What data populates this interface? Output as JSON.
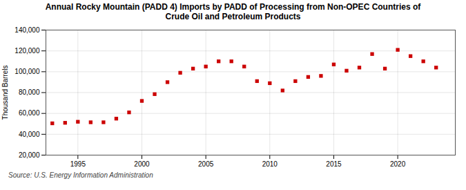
{
  "chart_data": {
    "type": "scatter",
    "title": "Annual Rocky Mountain (PADD 4) Imports by PADD of Processing from Non-OPEC Countries of\nCrude Oil and Petroleum Products",
    "ylabel": "Thousand Barrels",
    "source": "Source: U.S. Energy Information Administration",
    "x": [
      1993,
      1994,
      1995,
      1996,
      1997,
      1998,
      1999,
      2000,
      2001,
      2002,
      2003,
      2004,
      2005,
      2006,
      2007,
      2008,
      2009,
      2010,
      2011,
      2012,
      2013,
      2014,
      2015,
      2016,
      2017,
      2018,
      2019,
      2020,
      2021,
      2022,
      2023
    ],
    "values": [
      50500,
      51000,
      52000,
      51500,
      51500,
      55000,
      61000,
      72000,
      78500,
      90000,
      99000,
      103000,
      105000,
      110000,
      110000,
      105000,
      91000,
      89000,
      82000,
      91000,
      95000,
      96000,
      107000,
      101000,
      104000,
      117000,
      103000,
      121000,
      115000,
      110000,
      104000
    ],
    "color": "#cc0000",
    "marker": "square",
    "xlim": [
      1992.5,
      2024.5
    ],
    "xticks": [
      1995,
      2000,
      2005,
      2010,
      2015,
      2020
    ],
    "ylim": [
      20000,
      140000
    ],
    "yticks": [
      {
        "value": 20000,
        "label": "20,000"
      },
      {
        "value": 40000,
        "label": "40,000"
      },
      {
        "value": 60000,
        "label": "60,000"
      },
      {
        "value": 80000,
        "label": "80,000"
      },
      {
        "value": 100000,
        "label": "100,000"
      },
      {
        "value": 120000,
        "label": "120,000"
      },
      {
        "value": 140000,
        "label": "140,000"
      }
    ],
    "grid": true
  }
}
